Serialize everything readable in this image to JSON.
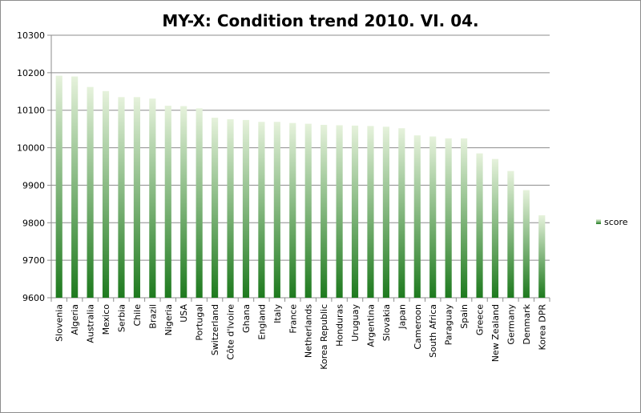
{
  "chart_data": {
    "type": "bar",
    "title": "MY-X: Condition trend 2010. VI. 04.",
    "xlabel": "",
    "ylabel": "",
    "ylim": [
      9600,
      10300
    ],
    "yticks": [
      9600,
      9700,
      9800,
      9900,
      10000,
      10100,
      10200,
      10300
    ],
    "grid": true,
    "legend_position": "right",
    "categories": [
      "Slovenia",
      "Algeria",
      "Australia",
      "Mexico",
      "Serbia",
      "Chile",
      "Brazil",
      "Nigeria",
      "USA",
      "Portugal",
      "Switzerland",
      "Côte d'Ivoire",
      "Ghana",
      "England",
      "Italy",
      "France",
      "Netherlands",
      "Korea Republic",
      "Honduras",
      "Uruguay",
      "Argentina",
      "Slovakia",
      "Japan",
      "Cameroon",
      "South Africa",
      "Paraguay",
      "Spain",
      "Greece",
      "New Zealand",
      "Germany",
      "Denmark",
      "Korea DPR"
    ],
    "series": [
      {
        "name": "score",
        "color_top": "#e6f2dc",
        "color_bottom": "#1e7a1e",
        "values": [
          10192,
          10190,
          10162,
          10151,
          10135,
          10135,
          10131,
          10112,
          10111,
          10105,
          10080,
          10076,
          10074,
          10069,
          10069,
          10066,
          10064,
          10061,
          10060,
          10059,
          10058,
          10056,
          10052,
          10033,
          10030,
          10025,
          10025,
          9985,
          9970,
          9938,
          9887,
          9820
        ]
      }
    ]
  }
}
